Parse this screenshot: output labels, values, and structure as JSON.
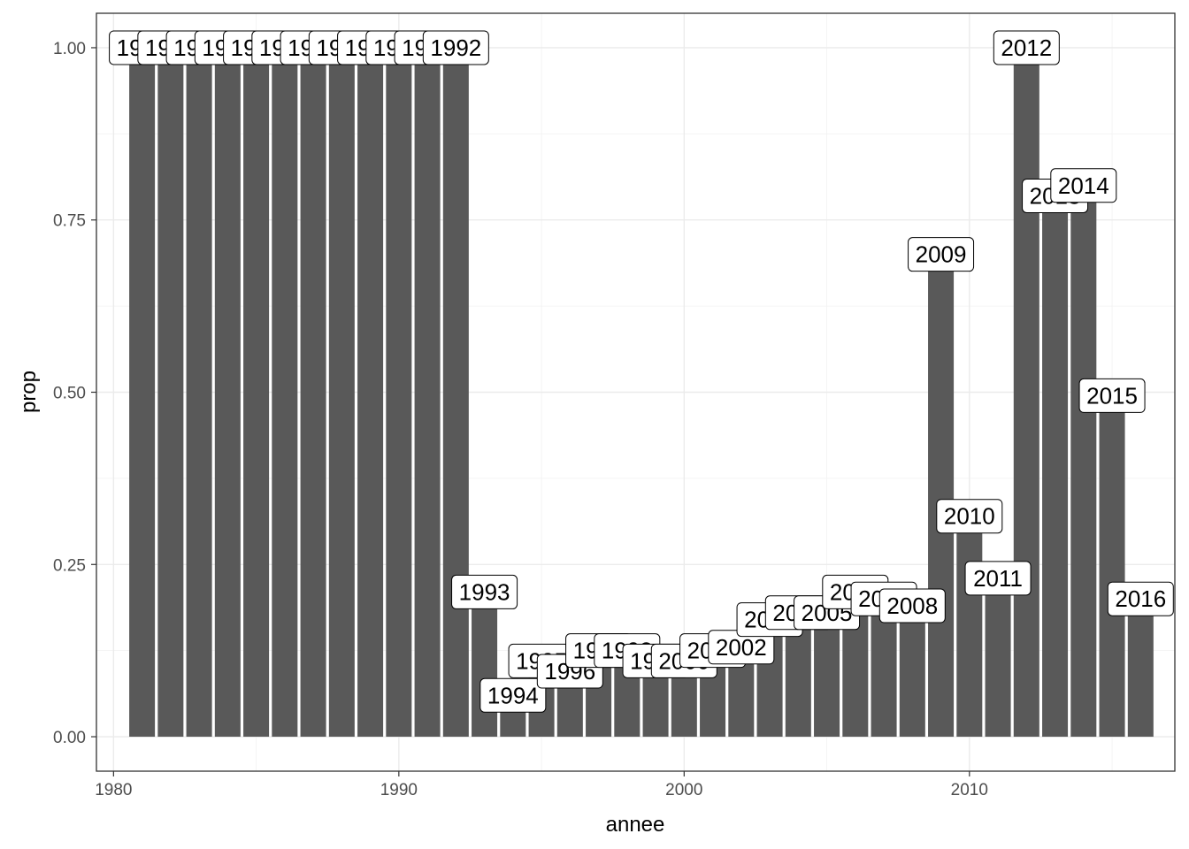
{
  "chart_data": {
    "type": "bar",
    "xlabel": "annee",
    "ylabel": "prop",
    "xlim": [
      1979.4,
      2017.2
    ],
    "ylim": [
      -0.05,
      1.05
    ],
    "x_ticks": [
      1980,
      1990,
      2000,
      2010
    ],
    "x_tick_labels": [
      "1980",
      "1990",
      "2000",
      "2010"
    ],
    "y_ticks": [
      0,
      0.25,
      0.5,
      0.75,
      1.0
    ],
    "y_tick_labels": [
      "0.00",
      "0.25",
      "0.50",
      "0.75",
      "1.00"
    ],
    "grid": true,
    "bar_color": "#595959",
    "x": [
      1981,
      1982,
      1983,
      1984,
      1985,
      1986,
      1987,
      1988,
      1989,
      1990,
      1991,
      1992,
      1993,
      1994,
      1995,
      1996,
      1997,
      1998,
      1999,
      2000,
      2001,
      2002,
      2003,
      2004,
      2005,
      2006,
      2007,
      2008,
      2009,
      2010,
      2011,
      2012,
      2013,
      2014,
      2015,
      2016
    ],
    "labels": [
      "1981",
      "1982",
      "1983",
      "1984",
      "1985",
      "1986",
      "1987",
      "1988",
      "1989",
      "1990",
      "1991",
      "1992",
      "1993",
      "1994",
      "1995",
      "1996",
      "1997",
      "1998",
      "1999",
      "2000",
      "2001",
      "2002",
      "2003",
      "2004",
      "2005",
      "2006",
      "2007",
      "2008",
      "2009",
      "2010",
      "2011",
      "2012",
      "2013",
      "2014",
      "2015",
      "2016"
    ],
    "values": [
      1.0,
      1.0,
      1.0,
      1.0,
      1.0,
      1.0,
      1.0,
      1.0,
      1.0,
      1.0,
      1.0,
      1.0,
      0.21,
      0.06,
      0.11,
      0.095,
      0.125,
      0.125,
      0.11,
      0.11,
      0.125,
      0.13,
      0.17,
      0.18,
      0.18,
      0.21,
      0.2,
      0.19,
      0.7,
      0.32,
      0.23,
      1.0,
      0.785,
      0.8,
      0.495,
      0.2
    ]
  }
}
